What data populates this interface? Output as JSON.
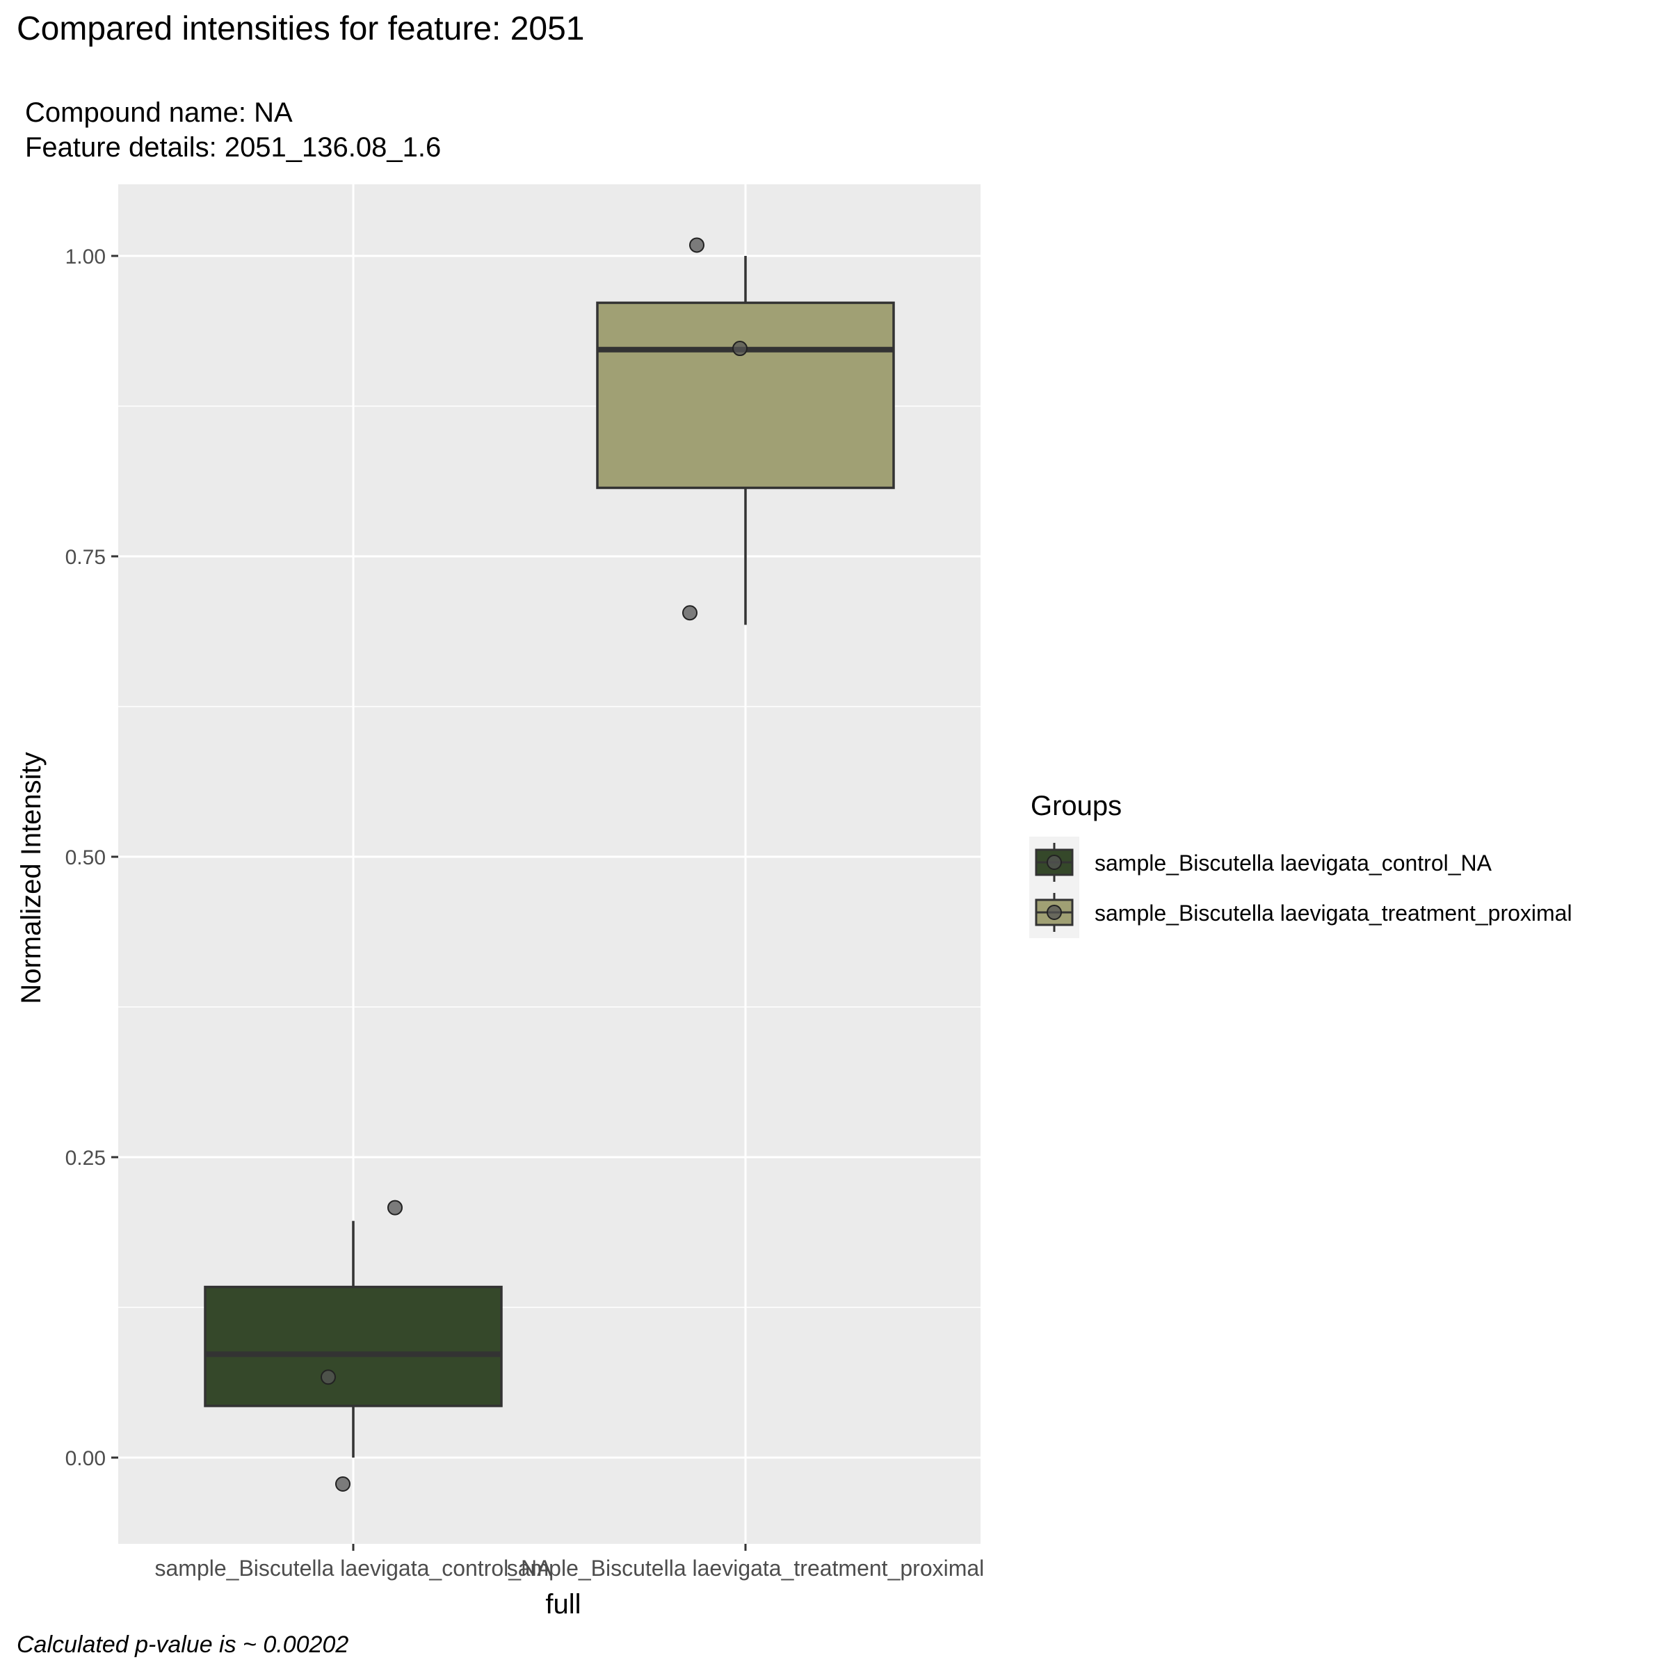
{
  "header": {
    "title": "Compared intensities for feature: 2051",
    "subtitle_compound": "Compound name:  NA",
    "subtitle_feature": "Feature details:  2051_136.08_1.6"
  },
  "footer": {
    "caption": "Calculated p-value is ~  0.00202"
  },
  "colors": {
    "panel_bg": "#ebebeb",
    "grid": "#ffffff",
    "control_fill": "#35482a",
    "treatment_fill": "#a0a074",
    "box_outline": "#333333",
    "point_fill": "#555555"
  },
  "chart_data": {
    "type": "box",
    "xlabel": "full",
    "ylabel": "Normalized Intensity",
    "ylim": [
      -0.07,
      1.06
    ],
    "yticks": [
      0.0,
      0.25,
      0.5,
      0.75,
      1.0
    ],
    "ytick_labels": [
      "0.00",
      "0.25",
      "0.50",
      "0.75",
      "1.00"
    ],
    "grid": true,
    "categories": [
      "sample_Biscutella laevigata_control_NA",
      "sample_Biscutella laevigata_treatment_proximal"
    ],
    "boxes": [
      {
        "group": "sample_Biscutella laevigata_control_NA",
        "whisker_low": 0.0,
        "q1": 0.043,
        "median": 0.086,
        "q3": 0.142,
        "whisker_high": 0.197
      },
      {
        "group": "sample_Biscutella laevigata_treatment_proximal",
        "whisker_low": 0.693,
        "q1": 0.807,
        "median": 0.922,
        "q3": 0.961,
        "whisker_high": 1.0
      }
    ],
    "points": [
      {
        "group": "sample_Biscutella laevigata_control_NA",
        "y": 0.208
      },
      {
        "group": "sample_Biscutella laevigata_control_NA",
        "y": 0.067
      },
      {
        "group": "sample_Biscutella laevigata_control_NA",
        "y": -0.022
      },
      {
        "group": "sample_Biscutella laevigata_treatment_proximal",
        "y": 1.009
      },
      {
        "group": "sample_Biscutella laevigata_treatment_proximal",
        "y": 0.923
      },
      {
        "group": "sample_Biscutella laevigata_treatment_proximal",
        "y": 0.703
      }
    ],
    "legend": {
      "title": "Groups",
      "position": "right",
      "entries": [
        "sample_Biscutella laevigata_control_NA",
        "sample_Biscutella laevigata_treatment_proximal"
      ]
    }
  }
}
